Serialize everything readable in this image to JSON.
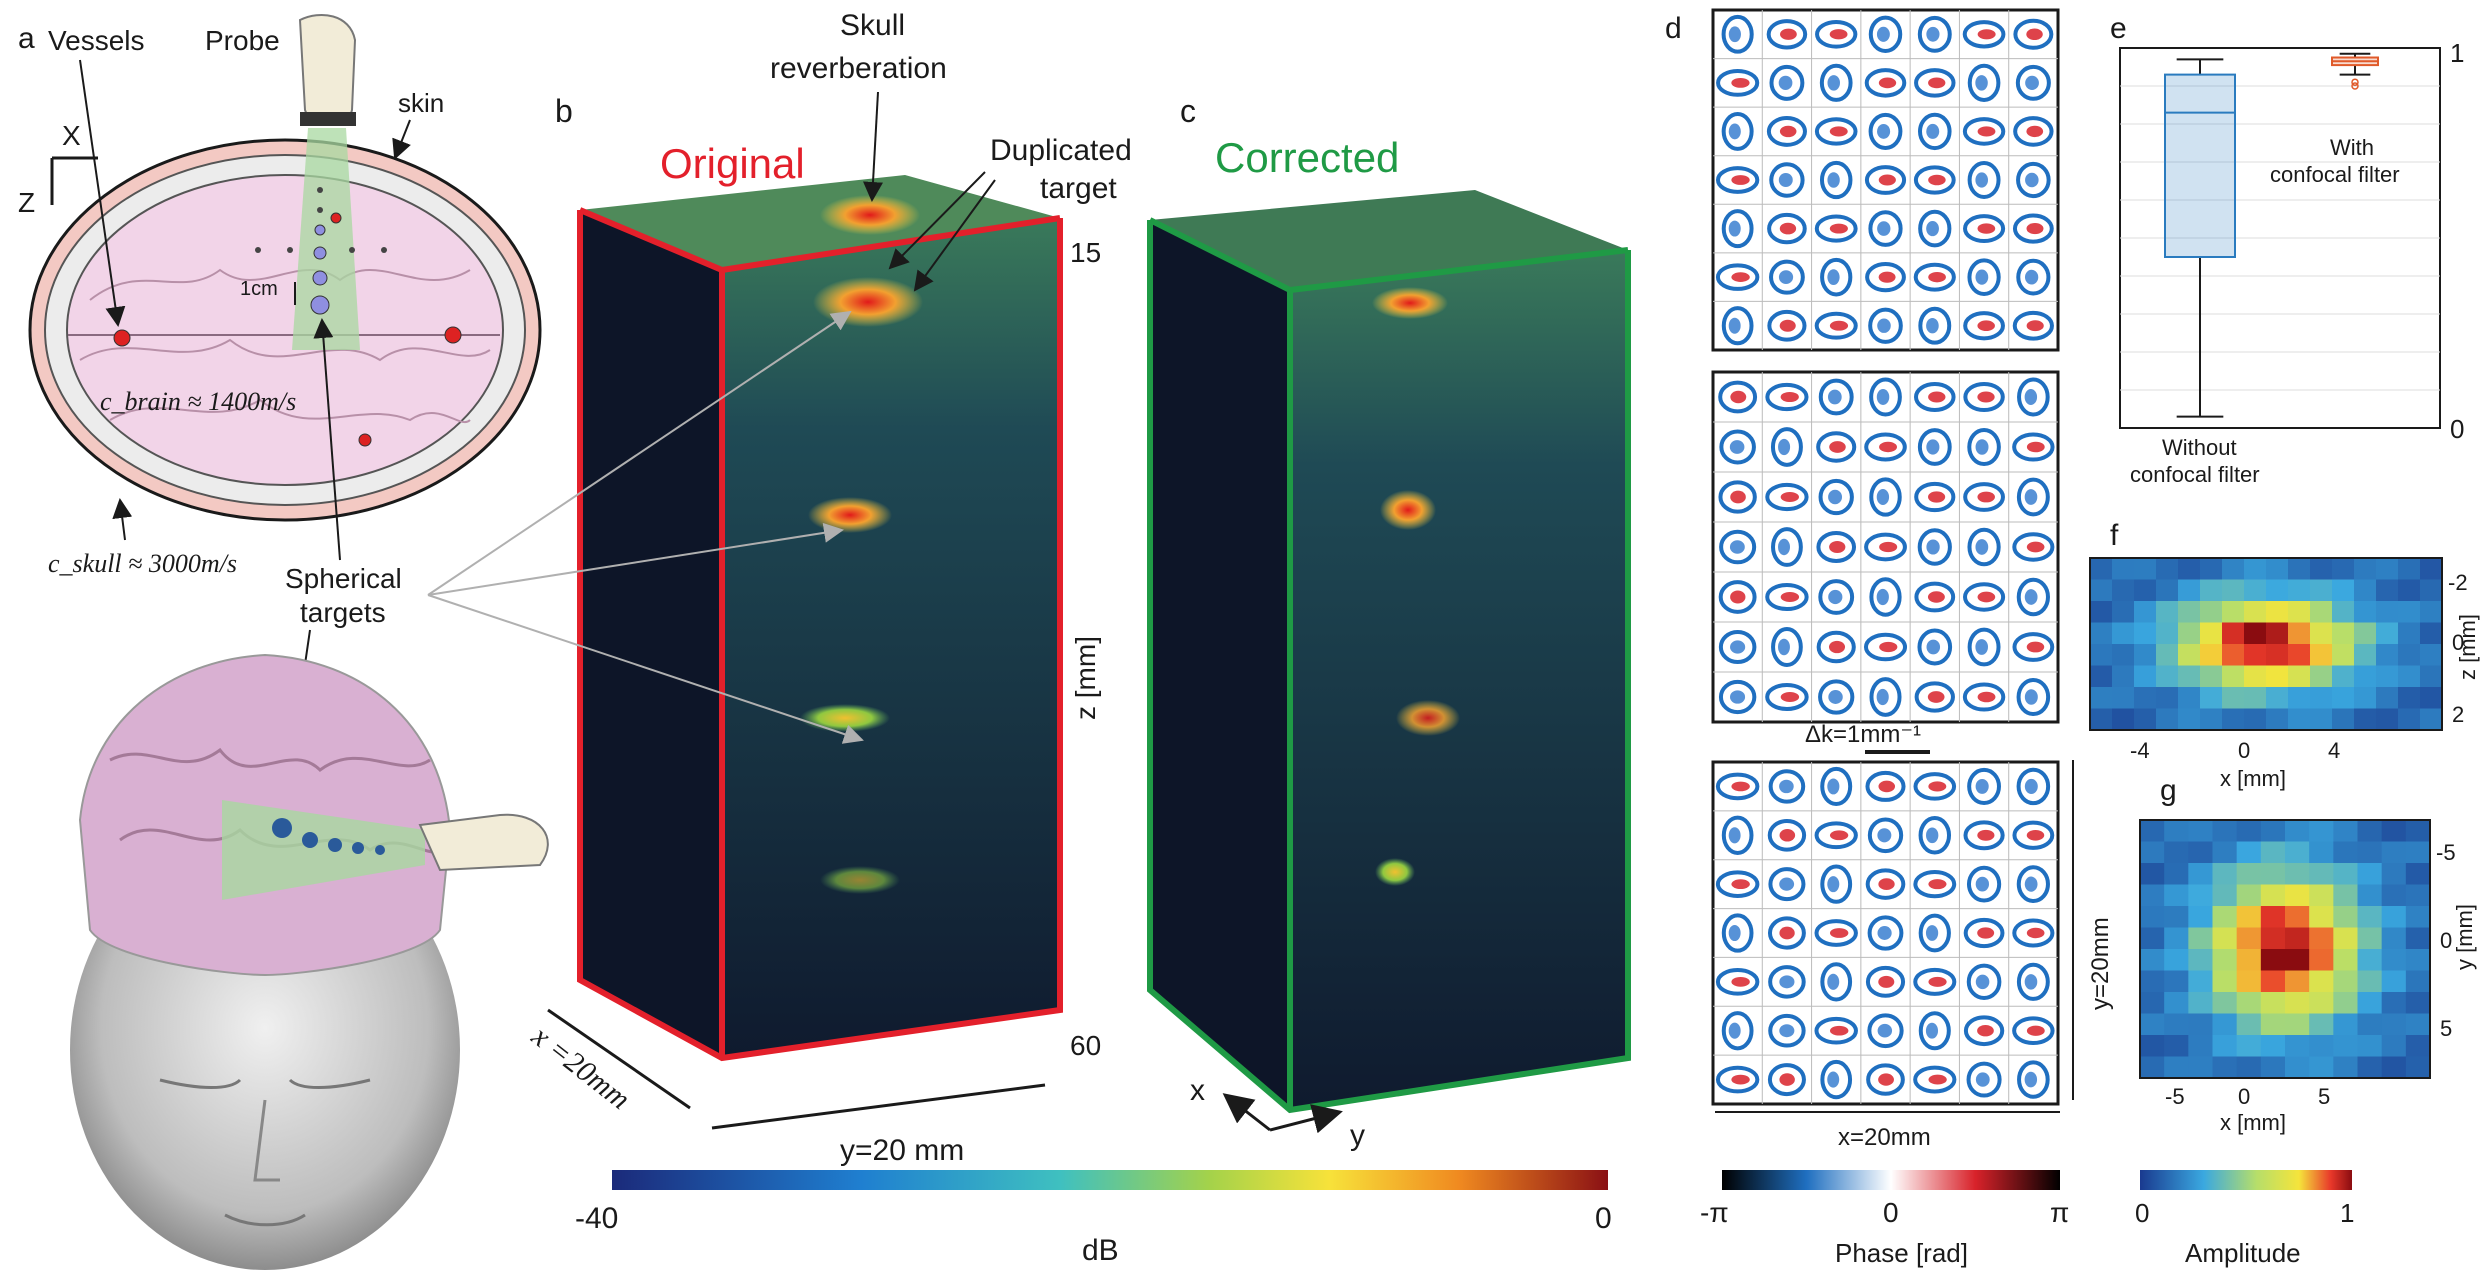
{
  "panel_letters": {
    "a": "a",
    "b": "b",
    "c": "c",
    "d": "d",
    "e": "e",
    "f": "f",
    "g": "g"
  },
  "panel_a": {
    "vessels": "Vessels",
    "probe": "Probe",
    "skin": "skin",
    "axis_x": "X",
    "axis_z": "Z",
    "scale": "1cm",
    "c_brain": "c_brain ≈ 1400m/s",
    "c_skull": "c_skull ≈ 3000m/s",
    "spherical_line1": "Spherical",
    "spherical_line2": "targets"
  },
  "panel_b": {
    "title": "Original",
    "title_color": "#e3202b",
    "skull_line1": "Skull",
    "skull_line2": "reverberation",
    "dup_line1": "Duplicated",
    "dup_line2": "target",
    "z_top": "15",
    "z_bottom": "60",
    "z_label": "z [mm]",
    "x_label": "x =20mm",
    "y_label": "y=20 mm"
  },
  "panel_c": {
    "title": "Corrected",
    "title_color": "#1f9a45",
    "axis_x": "x",
    "axis_y": "y"
  },
  "panel_d": {
    "dk_label": "Δk=1mm⁻¹",
    "y_label": "y=20mm",
    "x_label": "x=20mm"
  },
  "panel_e": {
    "type": "box",
    "y_top": "1",
    "y_bottom": "0",
    "ylim": [
      0,
      1
    ],
    "boxes": [
      {
        "label_line1": "Without",
        "label_line2": "confocal filter",
        "whisker_low": 0.03,
        "q1": 0.45,
        "median": 0.83,
        "q3": 0.93,
        "whisker_high": 0.97,
        "color": "#2a7bbf"
      },
      {
        "label_line1": "With",
        "label_line2": "confocal filter",
        "whisker_low": 0.93,
        "q1": 0.955,
        "median": 0.965,
        "q3": 0.975,
        "whisker_high": 0.985,
        "outliers": [
          0.9,
          0.91
        ],
        "color": "#e05a2a"
      }
    ]
  },
  "panel_f": {
    "xlabel": "x [mm]",
    "ylabel": "z [mm]",
    "xticks": [
      "-4",
      "0",
      "4"
    ],
    "yticks": [
      "-2",
      "0",
      "2"
    ]
  },
  "panel_g": {
    "xlabel": "x [mm]",
    "ylabel": "y [mm]",
    "xticks": [
      "-5",
      "0",
      "5"
    ],
    "yticks": [
      "-5",
      "0",
      "5"
    ]
  },
  "colorbar_db": {
    "min": "-40",
    "max": "0",
    "label": "dB"
  },
  "colorbar_phase": {
    "min": "-π",
    "mid": "0",
    "max": "π",
    "label": "Phase [rad]"
  },
  "colorbar_amp": {
    "min": "0",
    "max": "1",
    "label": "Amplitude"
  },
  "colors": {
    "original": "#e3202b",
    "corrected": "#1f9a45",
    "brain": "#f2d4e8",
    "skin": "#f3c9c3"
  }
}
